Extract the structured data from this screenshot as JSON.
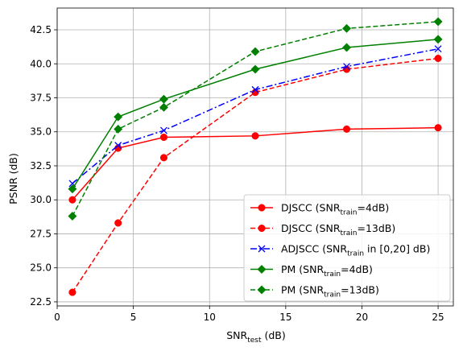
{
  "chart_data": {
    "type": "line",
    "title": "",
    "xlabel": {
      "main": "SNR",
      "sub": "test",
      "suffix": " (dB)"
    },
    "ylabel": "PSNR (dB)",
    "xlim": [
      0,
      26
    ],
    "ylim": [
      22.2,
      44.1
    ],
    "grid": true,
    "legend_position": "lower-right",
    "x_ticks": [
      0,
      5,
      10,
      15,
      20,
      25
    ],
    "x_tick_labels": [
      "0",
      "5",
      "10",
      "15",
      "20",
      "25"
    ],
    "y_ticks": [
      22.5,
      25.0,
      27.5,
      30.0,
      32.5,
      35.0,
      37.5,
      40.0,
      42.5
    ],
    "y_tick_labels": [
      "22.5",
      "25.0",
      "27.5",
      "30.0",
      "32.5",
      "35.0",
      "37.5",
      "40.0",
      "42.5"
    ],
    "x": [
      1,
      4,
      7,
      13,
      19,
      25
    ],
    "series": [
      {
        "name": "DJSCC (SNR_train=4dB)",
        "legend": {
          "pre": "DJSCC (SNR",
          "sub": "train",
          "post": "=4dB)"
        },
        "color": "#ff0000",
        "dash": "solid",
        "marker": "circle",
        "values": [
          30.0,
          33.8,
          34.6,
          34.7,
          35.2,
          35.3
        ]
      },
      {
        "name": "DJSCC (SNR_train=13dB)",
        "legend": {
          "pre": "DJSCC (SNR",
          "sub": "train",
          "post": "=13dB)"
        },
        "color": "#ff0000",
        "dash": "dashed",
        "marker": "circle",
        "values": [
          23.2,
          28.3,
          33.1,
          37.9,
          39.6,
          40.4
        ]
      },
      {
        "name": "ADJSCC (SNR_train in [0,20] dB)",
        "legend": {
          "pre": "ADJSCC (SNR",
          "sub": "train",
          "post": " in [0,20] dB)"
        },
        "color": "#0000ff",
        "dash": "dashdot",
        "marker": "x",
        "values": [
          31.2,
          34.0,
          35.1,
          38.1,
          39.8,
          41.1
        ]
      },
      {
        "name": "PM (SNR_train=4dB)",
        "legend": {
          "pre": "PM (SNR",
          "sub": "train",
          "post": "=4dB)"
        },
        "color": "#008000",
        "dash": "solid",
        "marker": "diamond",
        "values": [
          30.8,
          36.1,
          37.4,
          39.6,
          41.2,
          41.8
        ]
      },
      {
        "name": "PM (SNR_train=13dB)",
        "legend": {
          "pre": "PM (SNR",
          "sub": "train",
          "post": "=13dB)"
        },
        "color": "#008000",
        "dash": "dashed",
        "marker": "diamond",
        "values": [
          28.8,
          35.2,
          36.8,
          40.9,
          42.6,
          43.1
        ]
      }
    ]
  }
}
